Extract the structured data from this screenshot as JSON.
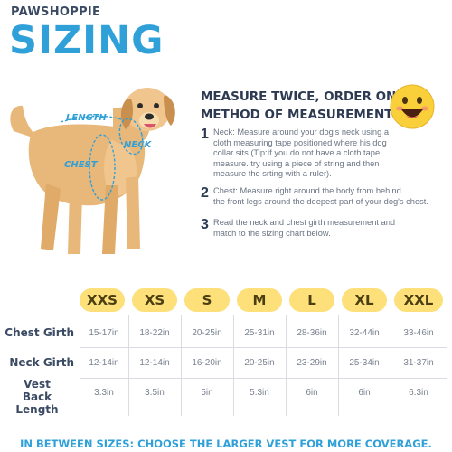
{
  "brand": "PAWSHOPPIE",
  "title": "SIZING",
  "dog_labels": {
    "length": "LENGTH",
    "neck": "NECK",
    "chest": "CHEST"
  },
  "heading1": "MEASURE TWICE, ORDER ONCE",
  "heading2": "METHOD OF MEASUREMENT:",
  "steps": [
    {
      "num": "1",
      "lines": [
        "Neck: Measure around your dog's neck using a",
        "cloth measuring tape positioned where his dog",
        "collar sits.(Tip:If you do not have a cloth tape",
        "measure. try using a piece of string and then",
        "measure the srting with a ruler)."
      ]
    },
    {
      "num": "2",
      "lines": [
        "Chest: Measure right around the body from behind",
        "the front legs around the deepest part of your dog's chest."
      ]
    },
    {
      "num": "3",
      "lines": [
        "Read the neck and chest girth measurement and",
        "match to the sizing chart below."
      ]
    }
  ],
  "table": {
    "sizes": [
      "XXS",
      "XS",
      "S",
      "M",
      "L",
      "XL",
      "XXL"
    ],
    "rows": [
      {
        "label": "Chest Girth",
        "values": [
          "15-17in",
          "18-22in",
          "20-25in",
          "25-31in",
          "28-36in",
          "32-44in",
          "33-46in"
        ]
      },
      {
        "label": "Neck Girth",
        "values": [
          "12-14in",
          "12-14in",
          "16-20in",
          "20-25in",
          "23-29in",
          "25-34in",
          "31-37in"
        ]
      },
      {
        "label_lines": [
          "Vest",
          "Back Length"
        ],
        "values": [
          "3.3in",
          "3.5in",
          "5in",
          "5.3in",
          "6in",
          "6in",
          "6.3in"
        ]
      }
    ]
  },
  "footer": "IN BETWEEN SIZES: CHOOSE THE LARGER VEST FOR MORE COVERAGE.",
  "colors": {
    "accent_blue": "#2fa0d8",
    "pill_yellow": "#fde07a",
    "dog_fur": "#e8b77a",
    "heading": "#2d3a52"
  }
}
